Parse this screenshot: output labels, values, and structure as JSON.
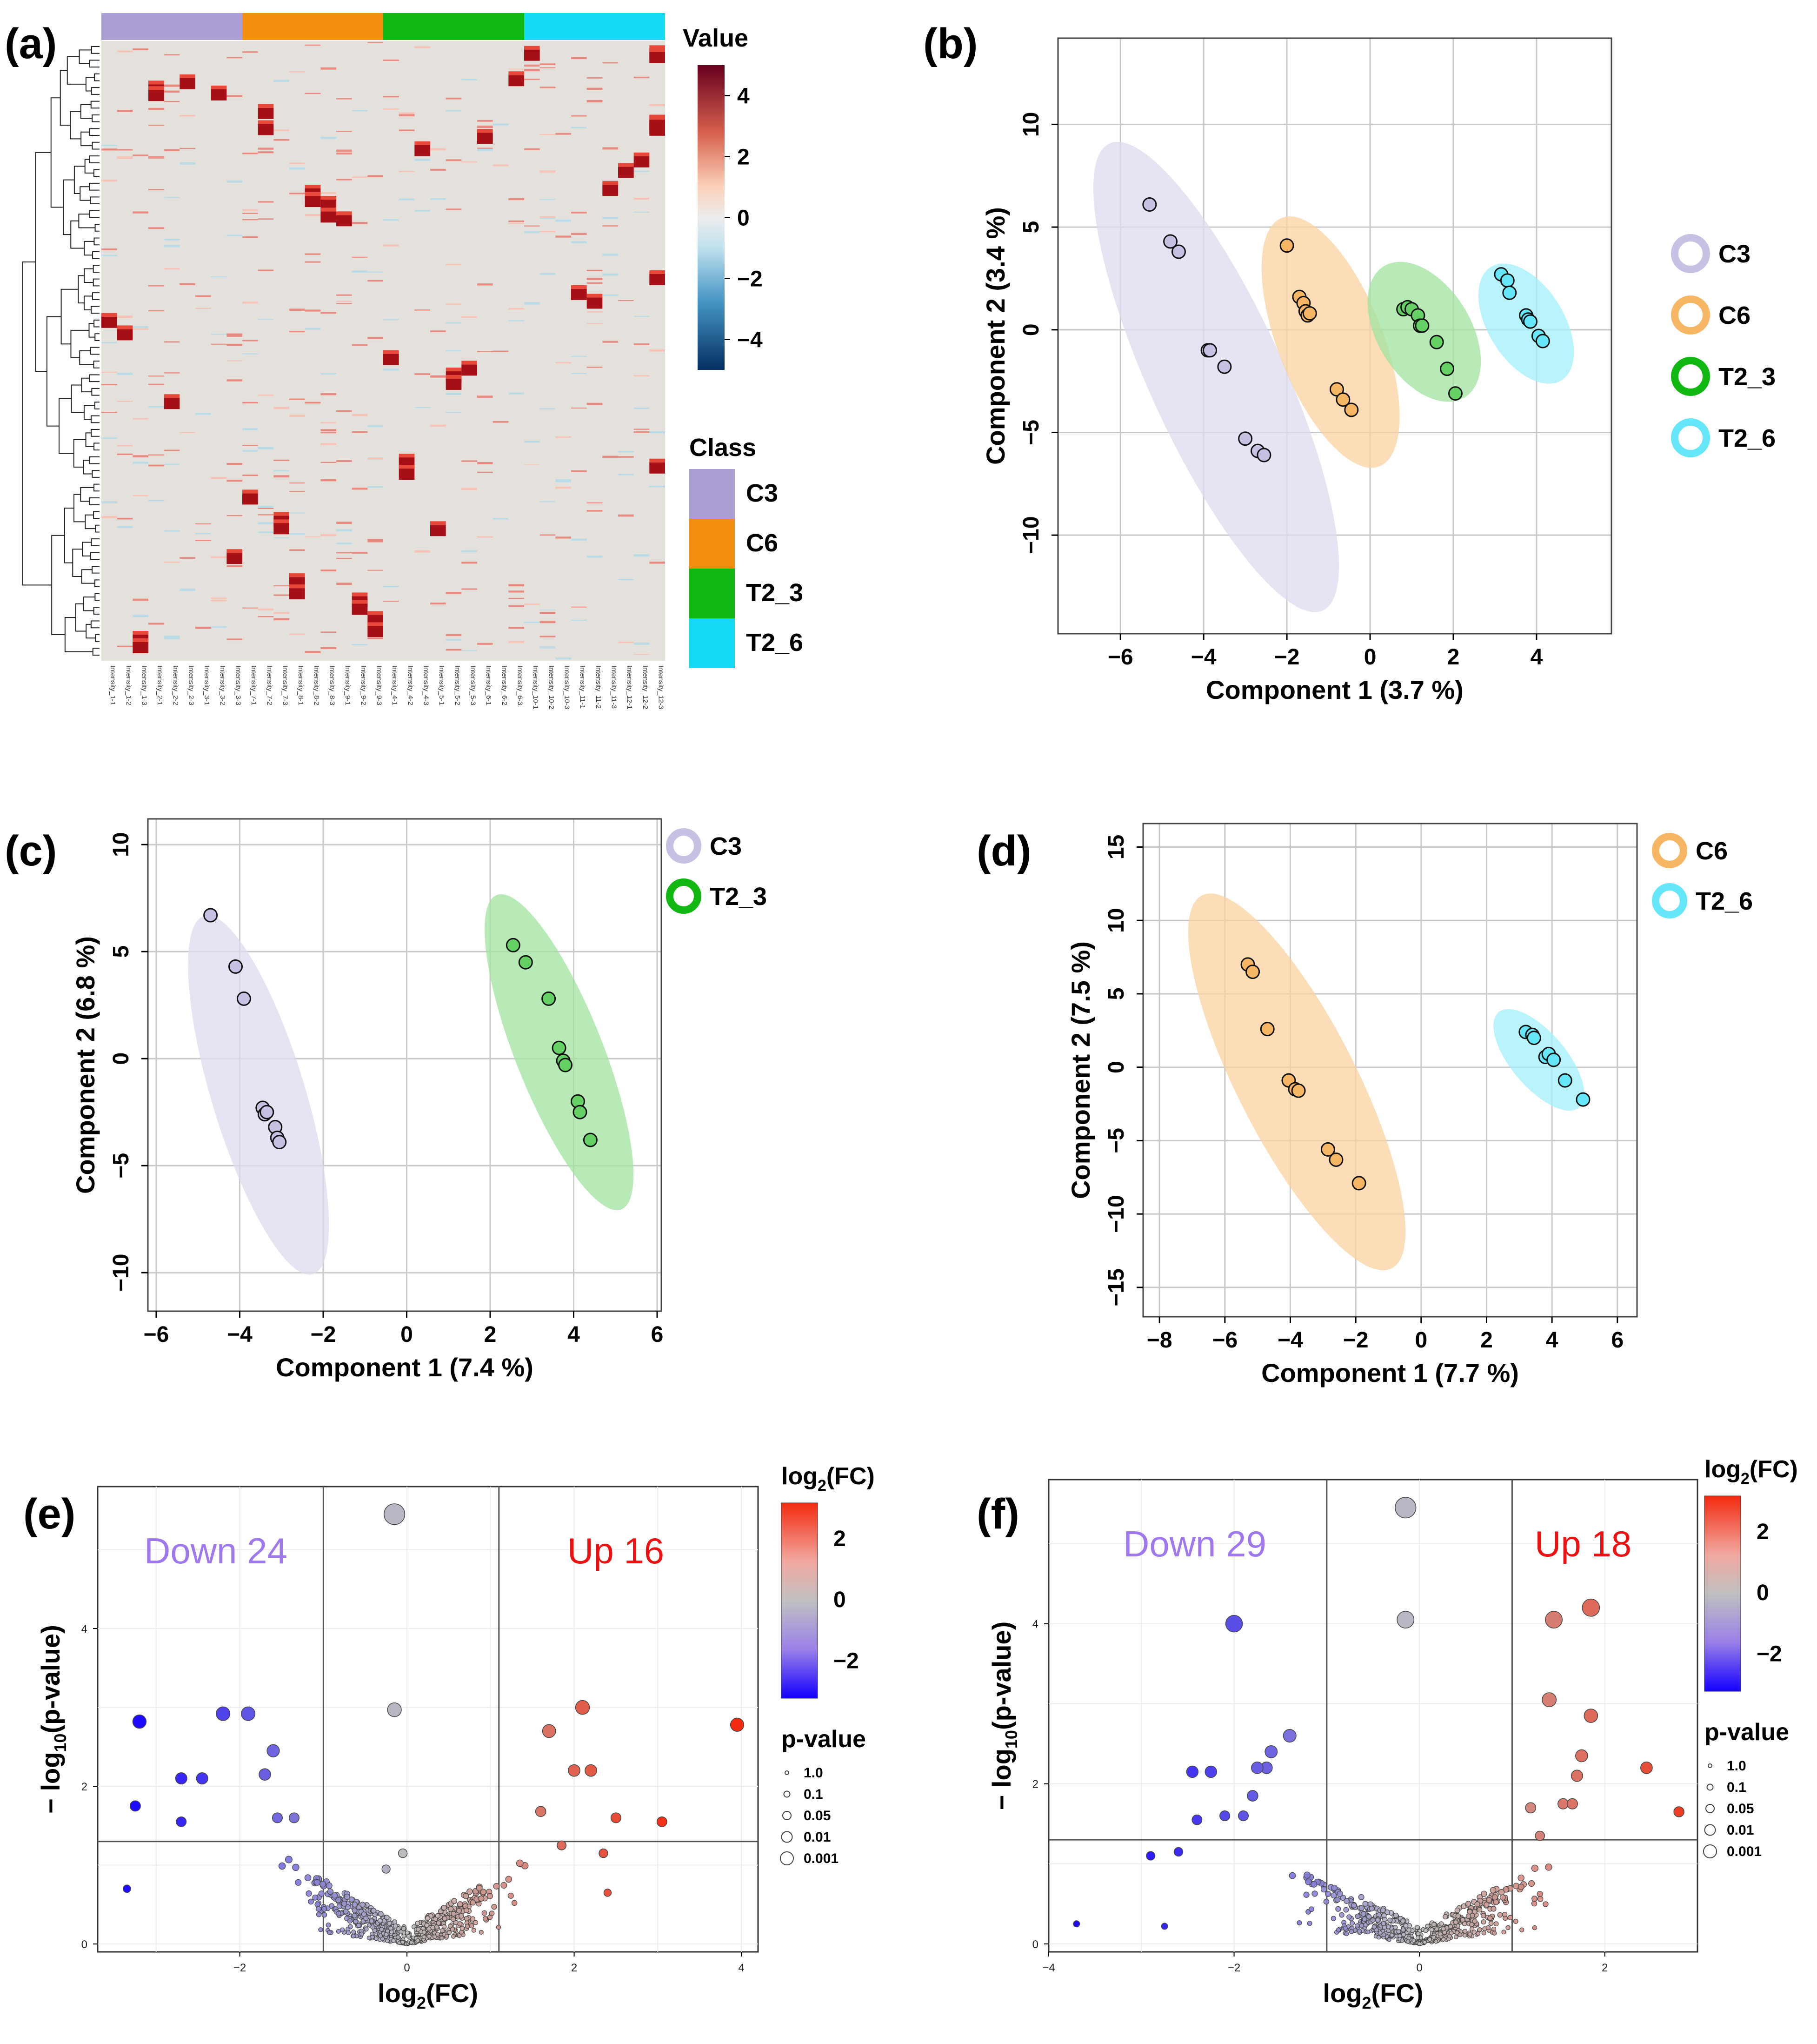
{
  "colors": {
    "C3": "#ab9fd6",
    "C6": "#f28e10",
    "T2_3": "#12b812",
    "T2_6": "#14d9f5"
  },
  "chart_data": [
    {
      "id": "a",
      "type": "heatmap",
      "panel_label": "(a)",
      "samples": [
        "Intensity_1-1",
        "Intensity_1-2",
        "Intensity_1-3",
        "Intensity_2-1",
        "Intensity_2-2",
        "Intensity_2-3",
        "Intensity_3-1",
        "Intensity_3-2",
        "Intensity_3-3",
        "Intensity_7-1",
        "Intensity_7-2",
        "Intensity_7-3",
        "Intensity_8-1",
        "Intensity_8-2",
        "Intensity_8-3",
        "Intensity_9-1",
        "Intensity_9-2",
        "Intensity_9-3",
        "Intensity_4-1",
        "Intensity_4-2",
        "Intensity_4-3",
        "Intensity_5-1",
        "Intensity_5-2",
        "Intensity_5-3",
        "Intensity_6-1",
        "Intensity_6-2",
        "Intensity_6-3",
        "Intensity_10-1",
        "Intensity_10-2",
        "Intensity_10-3",
        "Intensity_11-1",
        "Intensity_11-2",
        "Intensity_11-3",
        "Intensity_12-1",
        "Intensity_12-2",
        "Intensity_12-3"
      ],
      "value_legend": {
        "title": "Value",
        "ticks": [
          4,
          2,
          0,
          -2,
          -4
        ],
        "range": [
          -5,
          5
        ]
      },
      "class_legend": {
        "title": "Class",
        "items": [
          "C3",
          "C6",
          "T2_3",
          "T2_6"
        ]
      }
    },
    {
      "id": "b",
      "type": "scatter",
      "panel_label": "(b)",
      "xlabel": "Component 1 (3.7 %)",
      "ylabel": "Component 2 (3.4 %)",
      "xlim": [
        -7.5,
        5.8
      ],
      "ylim": [
        -14.8,
        14.2
      ],
      "xticks": [
        -6,
        -4,
        -2,
        0,
        2,
        4
      ],
      "yticks": [
        10,
        5,
        0,
        -5,
        -10
      ],
      "legend": [
        "C3",
        "C6",
        "T2_3",
        "T2_6"
      ],
      "series": [
        {
          "name": "C3",
          "ellipse": {
            "cx": -3.7,
            "cy": -2.3,
            "len": 25.0,
            "w": 1.15
          },
          "points": [
            [
              -5.3,
              6.1
            ],
            [
              -4.8,
              4.3
            ],
            [
              -4.6,
              3.8
            ],
            [
              -3.9,
              -1.0
            ],
            [
              -3.85,
              -1.0
            ],
            [
              -3.5,
              -1.8
            ],
            [
              -3.0,
              -5.3
            ],
            [
              -2.7,
              -5.9
            ],
            [
              -2.55,
              -6.1
            ]
          ]
        },
        {
          "name": "C6",
          "ellipse": {
            "cx": -0.95,
            "cy": -0.6,
            "len": 13.0,
            "w": 0.9
          },
          "points": [
            [
              -2.0,
              4.1
            ],
            [
              -1.7,
              1.6
            ],
            [
              -1.6,
              1.3
            ],
            [
              -1.55,
              0.9
            ],
            [
              -1.5,
              0.7
            ],
            [
              -1.45,
              0.8
            ],
            [
              -0.8,
              -2.9
            ],
            [
              -0.65,
              -3.4
            ],
            [
              -0.45,
              -3.9
            ]
          ]
        },
        {
          "name": "T2_3",
          "ellipse": {
            "cx": 1.3,
            "cy": -0.1,
            "len": 7.5,
            "w": 0.8
          },
          "points": [
            [
              0.8,
              1.0
            ],
            [
              0.9,
              1.1
            ],
            [
              1.0,
              1.0
            ],
            [
              1.15,
              0.7
            ],
            [
              1.2,
              0.2
            ],
            [
              1.25,
              0.2
            ],
            [
              1.6,
              -0.6
            ],
            [
              1.85,
              -1.9
            ],
            [
              2.05,
              -3.1
            ]
          ]
        },
        {
          "name": "T2_6",
          "ellipse": {
            "cx": 3.75,
            "cy": 0.3,
            "len": 6.5,
            "w": 0.65
          },
          "points": [
            [
              3.15,
              2.7
            ],
            [
              3.3,
              2.4
            ],
            [
              3.35,
              1.8
            ],
            [
              3.75,
              0.7
            ],
            [
              3.8,
              0.5
            ],
            [
              3.85,
              0.4
            ],
            [
              4.05,
              -0.3
            ],
            [
              4.15,
              -0.55
            ]
          ]
        }
      ]
    },
    {
      "id": "c",
      "type": "scatter",
      "panel_label": "(c)",
      "xlabel": "Component 1 (7.4 %)",
      "ylabel": "Component 2 (6.8 %)",
      "xlim": [
        -6.2,
        6.1
      ],
      "ylim": [
        -11.8,
        11.2
      ],
      "xticks": [
        -6,
        -4,
        -2,
        0,
        2,
        4,
        6
      ],
      "yticks": [
        10,
        5,
        0,
        -5,
        -10
      ],
      "legend": [
        "C3",
        "T2_3"
      ],
      "series": [
        {
          "name": "C3",
          "ellipse": {
            "cx": -3.55,
            "cy": -1.7,
            "len": 17.5,
            "w": 0.8
          },
          "points": [
            [
              -4.7,
              6.7
            ],
            [
              -4.1,
              4.3
            ],
            [
              -3.9,
              2.8
            ],
            [
              -3.45,
              -2.3
            ],
            [
              -3.4,
              -2.6
            ],
            [
              -3.35,
              -2.5
            ],
            [
              -3.15,
              -3.2
            ],
            [
              -3.1,
              -3.7
            ],
            [
              -3.05,
              -3.9
            ]
          ]
        },
        {
          "name": "T2_3",
          "ellipse": {
            "cx": 3.65,
            "cy": 0.3,
            "len": 15.8,
            "w": 0.75
          },
          "points": [
            [
              2.55,
              5.3
            ],
            [
              2.85,
              4.5
            ],
            [
              3.4,
              2.8
            ],
            [
              3.65,
              0.5
            ],
            [
              3.75,
              -0.1
            ],
            [
              3.8,
              -0.3
            ],
            [
              4.1,
              -2.0
            ],
            [
              4.15,
              -2.5
            ],
            [
              4.4,
              -3.8
            ]
          ]
        }
      ]
    },
    {
      "id": "d",
      "type": "scatter",
      "panel_label": "(d)",
      "xlabel": "Component 1 (7.7 %)",
      "ylabel": "Component 2 (7.5 %)",
      "xlim": [
        -8.5,
        6.6
      ],
      "ylim": [
        -17.0,
        16.6
      ],
      "xticks": [
        -8,
        -6,
        -4,
        -2,
        0,
        2,
        4,
        6
      ],
      "yticks": [
        15,
        10,
        5,
        0,
        -5,
        -10,
        -15
      ],
      "legend": [
        "C6",
        "T2_6"
      ],
      "series": [
        {
          "name": "C6",
          "ellipse": {
            "cx": -3.8,
            "cy": -1.0,
            "len": 28.5,
            "w": 1.3
          },
          "points": [
            [
              -5.3,
              7.0
            ],
            [
              -5.15,
              6.5
            ],
            [
              -4.7,
              2.6
            ],
            [
              -4.05,
              -0.9
            ],
            [
              -3.85,
              -1.5
            ],
            [
              -3.75,
              -1.6
            ],
            [
              -2.85,
              -5.6
            ],
            [
              -2.6,
              -6.3
            ],
            [
              -1.9,
              -7.9
            ]
          ]
        },
        {
          "name": "T2_6",
          "ellipse": {
            "cx": 3.6,
            "cy": 0.5,
            "len": 8.5,
            "w": 0.6
          },
          "points": [
            [
              3.2,
              2.4
            ],
            [
              3.4,
              2.2
            ],
            [
              3.45,
              2.0
            ],
            [
              3.8,
              0.7
            ],
            [
              3.9,
              0.9
            ],
            [
              4.05,
              0.5
            ],
            [
              4.4,
              -0.9
            ],
            [
              4.95,
              -2.2
            ]
          ]
        }
      ]
    },
    {
      "id": "e",
      "type": "scatter",
      "panel_label": "(e)",
      "title_down": "Down 24",
      "title_up": "Up 16",
      "xlabel": "log2(FC)",
      "ylabel": "− log10(p-value)",
      "xlim": [
        -3.7,
        4.2
      ],
      "ylim": [
        -0.1,
        5.8
      ],
      "xticks": [
        -2,
        0,
        2,
        4
      ],
      "yticks": [
        0,
        2,
        4
      ],
      "vlines": [
        -1,
        1.1
      ],
      "hline": 1.3,
      "highlight_points": [
        [
          -0.15,
          5.45
        ],
        [
          -0.15,
          2.97
        ],
        [
          -3.2,
          2.82
        ],
        [
          -2.2,
          2.92
        ],
        [
          -1.9,
          2.92
        ],
        [
          -2.7,
          2.1
        ],
        [
          -2.45,
          2.1
        ],
        [
          -1.6,
          2.45
        ],
        [
          -1.7,
          2.15
        ],
        [
          -1.35,
          1.6
        ],
        [
          -1.55,
          1.6
        ],
        [
          -3.25,
          1.75
        ],
        [
          -2.7,
          1.55
        ],
        [
          -3.35,
          0.7
        ],
        [
          2.1,
          3.0
        ],
        [
          1.7,
          2.7
        ],
        [
          3.95,
          2.78
        ],
        [
          2.0,
          2.2
        ],
        [
          1.6,
          1.68
        ],
        [
          2.5,
          1.6
        ],
        [
          3.05,
          1.55
        ],
        [
          2.2,
          2.2
        ],
        [
          1.85,
          1.25
        ],
        [
          2.35,
          1.15
        ],
        [
          2.4,
          0.65
        ],
        [
          -0.05,
          1.15
        ],
        [
          -0.25,
          0.95
        ]
      ],
      "color_legend": {
        "title": "log2(FC)",
        "ticks": [
          2,
          0,
          -2
        ]
      },
      "size_legend": {
        "title": "p-value",
        "items": [
          "1.0",
          "0.1",
          "0.05",
          "0.01",
          "0.001"
        ]
      }
    },
    {
      "id": "f",
      "type": "scatter",
      "panel_label": "(f)",
      "title_down": "Down 29",
      "title_up": "Up 18",
      "xlabel": "log2(FC)",
      "ylabel": "− log10(p-value)",
      "xlim": [
        -4.0,
        3.0
      ],
      "ylim": [
        -0.1,
        5.8
      ],
      "xticks": [
        -4,
        -2,
        0,
        2
      ],
      "yticks": [
        0,
        2,
        4
      ],
      "vlines": [
        -1,
        1
      ],
      "hline": 1.3,
      "highlight_points": [
        [
          -0.15,
          5.45
        ],
        [
          -0.15,
          4.05
        ],
        [
          -2.0,
          4.0
        ],
        [
          -1.4,
          2.6
        ],
        [
          -1.6,
          2.4
        ],
        [
          -1.65,
          2.2
        ],
        [
          -1.75,
          2.2
        ],
        [
          -2.25,
          2.15
        ],
        [
          -2.45,
          2.15
        ],
        [
          -1.8,
          1.85
        ],
        [
          -1.9,
          1.6
        ],
        [
          -2.1,
          1.6
        ],
        [
          -2.4,
          1.55
        ],
        [
          -3.7,
          0.25
        ],
        [
          -2.75,
          0.22
        ],
        [
          -2.9,
          1.1
        ],
        [
          -2.6,
          1.15
        ],
        [
          1.85,
          4.2
        ],
        [
          1.45,
          4.05
        ],
        [
          1.4,
          3.05
        ],
        [
          1.85,
          2.85
        ],
        [
          1.75,
          2.35
        ],
        [
          1.7,
          2.1
        ],
        [
          2.45,
          2.2
        ],
        [
          1.55,
          1.75
        ],
        [
          1.65,
          1.75
        ],
        [
          2.8,
          1.65
        ],
        [
          1.2,
          1.7
        ],
        [
          1.3,
          1.35
        ]
      ],
      "color_legend": {
        "title": "log2(FC)",
        "ticks": [
          2,
          0,
          -2
        ]
      },
      "size_legend": {
        "title": "p-value",
        "items": [
          "1.0",
          "0.1",
          "0.05",
          "0.01",
          "0.001"
        ]
      }
    }
  ]
}
